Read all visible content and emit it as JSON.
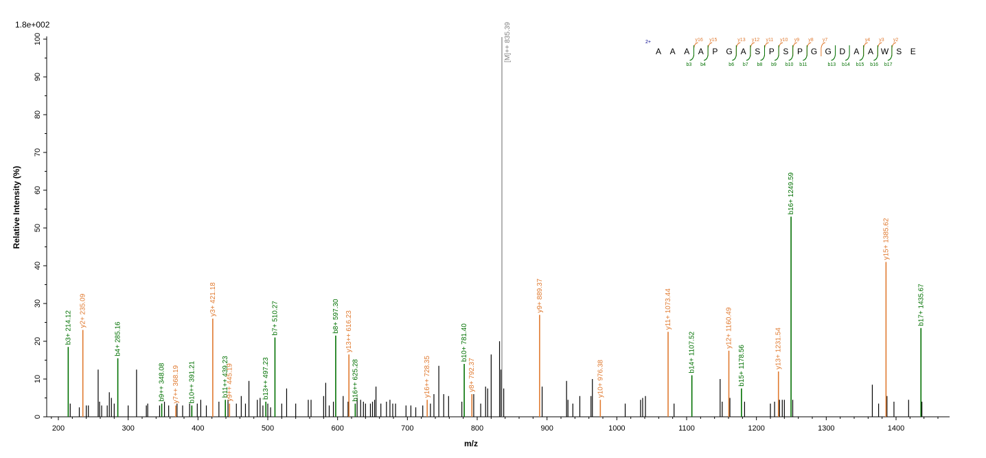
{
  "chart_data": {
    "type": "bar",
    "scale_label": "1.8e+002",
    "xlabel": "m/z",
    "ylabel": "Relative  Intensity (%)",
    "xlim": [
      190,
      1470
    ],
    "ylim": [
      0,
      100
    ],
    "x_ticks": [
      "200",
      "300",
      "400",
      "500",
      "600",
      "700",
      "800",
      "900",
      "1000",
      "1100",
      "1200",
      "1300",
      "1400"
    ],
    "y_ticks": [
      "0",
      "10",
      "20",
      "30",
      "40",
      "50",
      "60",
      "70",
      "80",
      "90",
      "100"
    ],
    "colors": {
      "b": "#007000",
      "y": "#e07a30",
      "precursor": "#808080",
      "unassigned": "#000000",
      "charge": "#00008b"
    },
    "precursor": {
      "mz": 835.39,
      "value": 100,
      "label": "[M]++ 835.39"
    },
    "annotated_peaks": [
      {
        "mz": 214.12,
        "value": 18.5,
        "ion": "b",
        "label": "b3+ 214.12"
      },
      {
        "mz": 235.09,
        "value": 23,
        "ion": "y",
        "label": "y2+ 235.09"
      },
      {
        "mz": 285.16,
        "value": 15.5,
        "ion": "b",
        "label": "b4+ 285.16"
      },
      {
        "mz": 348.08,
        "value": 3.5,
        "ion": "b",
        "label": "b9++ 348.08"
      },
      {
        "mz": 368.19,
        "value": 3,
        "ion": "y",
        "label": "y7++ 368.19"
      },
      {
        "mz": 391.21,
        "value": 3,
        "ion": "b",
        "label": "b10++ 391.21"
      },
      {
        "mz": 421.18,
        "value": 26,
        "ion": "y",
        "label": "y3+ 421.18"
      },
      {
        "mz": 439.23,
        "value": 4.5,
        "ion": "b",
        "label": "b11++ 439.23"
      },
      {
        "mz": 445.19,
        "value": 3.5,
        "ion": "y",
        "label": "y9++ 445.19"
      },
      {
        "mz": 497.23,
        "value": 4,
        "ion": "b",
        "label": "b13++ 497.23"
      },
      {
        "mz": 510.27,
        "value": 21,
        "ion": "b",
        "label": "b7+ 510.27"
      },
      {
        "mz": 597.3,
        "value": 21.5,
        "ion": "b",
        "label": "b8+ 597.30"
      },
      {
        "mz": 616.23,
        "value": 16.5,
        "ion": "y",
        "label": "y13++ 616.23"
      },
      {
        "mz": 625.28,
        "value": 3.5,
        "ion": "b",
        "label": "b16++ 625.28"
      },
      {
        "mz": 728.35,
        "value": 4.5,
        "ion": "y",
        "label": "y16++ 728.35"
      },
      {
        "mz": 781.4,
        "value": 14,
        "ion": "b",
        "label": "b10+ 781.40"
      },
      {
        "mz": 792.37,
        "value": 6,
        "ion": "y",
        "label": "y8+ 792.37"
      },
      {
        "mz": 889.37,
        "value": 27,
        "ion": "y",
        "label": "y9+ 889.37"
      },
      {
        "mz": 976.38,
        "value": 4.5,
        "ion": "y",
        "label": "y10+ 976.38"
      },
      {
        "mz": 1073.44,
        "value": 22.5,
        "ion": "y",
        "label": "y11+ 1073.44"
      },
      {
        "mz": 1107.52,
        "value": 11,
        "ion": "b",
        "label": "b14+ 1107.52"
      },
      {
        "mz": 1160.49,
        "value": 17.5,
        "ion": "y",
        "label": "y12+ 1160.49"
      },
      {
        "mz": 1178.56,
        "value": 7.5,
        "ion": "b",
        "label": "b15+ 1178.56"
      },
      {
        "mz": 1231.54,
        "value": 12,
        "ion": "y",
        "label": "y13+ 1231.54"
      },
      {
        "mz": 1249.59,
        "value": 53,
        "ion": "b",
        "label": "b16+ 1249.59"
      },
      {
        "mz": 1385.62,
        "value": 41,
        "ion": "y",
        "label": "y15+ 1385.62"
      },
      {
        "mz": 1435.67,
        "value": 23.5,
        "ion": "b",
        "label": "b17+ 1435.67"
      }
    ],
    "unassigned_peaks": [
      [
        217,
        3.5
      ],
      [
        230,
        2.5
      ],
      [
        240,
        3
      ],
      [
        243,
        3
      ],
      [
        257,
        12.5
      ],
      [
        259,
        4
      ],
      [
        262,
        3
      ],
      [
        270,
        3
      ],
      [
        273,
        6.5
      ],
      [
        276,
        5
      ],
      [
        280,
        3.5
      ],
      [
        300,
        3
      ],
      [
        312,
        12.5
      ],
      [
        326,
        3
      ],
      [
        328,
        3.5
      ],
      [
        345,
        3
      ],
      [
        352,
        4
      ],
      [
        358,
        3
      ],
      [
        370,
        3.5
      ],
      [
        378,
        3
      ],
      [
        388,
        3.5
      ],
      [
        391,
        3
      ],
      [
        399,
        3.5
      ],
      [
        404,
        4.5
      ],
      [
        412,
        3
      ],
      [
        430,
        4
      ],
      [
        443,
        4.5
      ],
      [
        455,
        3.5
      ],
      [
        462,
        5.5
      ],
      [
        468,
        3.5
      ],
      [
        473,
        9.5
      ],
      [
        485,
        4.5
      ],
      [
        489,
        5
      ],
      [
        493,
        3
      ],
      [
        500,
        3.5
      ],
      [
        504,
        2.5
      ],
      [
        520,
        3.5
      ],
      [
        527,
        7.5
      ],
      [
        540,
        3.5
      ],
      [
        558,
        4.5
      ],
      [
        562,
        4.5
      ],
      [
        580,
        5.5
      ],
      [
        583,
        9
      ],
      [
        588,
        3
      ],
      [
        594,
        4
      ],
      [
        608,
        5.5
      ],
      [
        615,
        4
      ],
      [
        628,
        5
      ],
      [
        633,
        4.5
      ],
      [
        637,
        4
      ],
      [
        640,
        3.5
      ],
      [
        647,
        3.5
      ],
      [
        650,
        4
      ],
      [
        653,
        4.5
      ],
      [
        655,
        8
      ],
      [
        662,
        3.5
      ],
      [
        670,
        4
      ],
      [
        675,
        4.5
      ],
      [
        679,
        3.5
      ],
      [
        683,
        3.5
      ],
      [
        698,
        3
      ],
      [
        705,
        3
      ],
      [
        712,
        2.5
      ],
      [
        722,
        3
      ],
      [
        733,
        3.5
      ],
      [
        738,
        6
      ],
      [
        745,
        13.5
      ],
      [
        752,
        6
      ],
      [
        759,
        5.5
      ],
      [
        778,
        4
      ],
      [
        795,
        6
      ],
      [
        805,
        3.5
      ],
      [
        812,
        8
      ],
      [
        815,
        7.5
      ],
      [
        820,
        16.5
      ],
      [
        832,
        20
      ],
      [
        834,
        12.5
      ],
      [
        838,
        7.5
      ],
      [
        893,
        8
      ],
      [
        928,
        9.5
      ],
      [
        930,
        4.5
      ],
      [
        937,
        3.5
      ],
      [
        947,
        5.5
      ],
      [
        963,
        5.5
      ],
      [
        965,
        10
      ],
      [
        1012,
        3.5
      ],
      [
        1034,
        4.5
      ],
      [
        1037,
        5
      ],
      [
        1041,
        5.5
      ],
      [
        1082,
        3.5
      ],
      [
        1148,
        10
      ],
      [
        1151,
        4
      ],
      [
        1162,
        5
      ],
      [
        1183,
        4
      ],
      [
        1220,
        3.5
      ],
      [
        1226,
        4
      ],
      [
        1233,
        4.5
      ],
      [
        1237,
        4.5
      ],
      [
        1240,
        4.5
      ],
      [
        1252,
        4.5
      ],
      [
        1366,
        8.5
      ],
      [
        1375,
        3.5
      ],
      [
        1387,
        5.5
      ],
      [
        1397,
        4
      ],
      [
        1418,
        4.5
      ],
      [
        1437,
        4
      ]
    ],
    "sequence": {
      "charge": "2+",
      "residues": [
        "A",
        "A",
        "A",
        "A",
        "P",
        "G",
        "A",
        "S",
        "P",
        "S",
        "P",
        "G",
        "G",
        "D",
        "A",
        "A",
        "W",
        "S",
        "E"
      ],
      "y_ions": [
        {
          "after": 3,
          "label": "y16"
        },
        {
          "after": 4,
          "label": "y15"
        },
        {
          "after": 6,
          "label": "y13"
        },
        {
          "after": 7,
          "label": "y12"
        },
        {
          "after": 8,
          "label": "y11"
        },
        {
          "after": 9,
          "label": "y10"
        },
        {
          "after": 10,
          "label": "y9"
        },
        {
          "after": 11,
          "label": "y8"
        },
        {
          "after": 12,
          "label": "y7"
        },
        {
          "after": 15,
          "label": "y4"
        },
        {
          "after": 16,
          "label": "y3"
        },
        {
          "after": 17,
          "label": "y2"
        }
      ],
      "b_ions": [
        {
          "after": 3,
          "label": "b3"
        },
        {
          "after": 4,
          "label": "b4"
        },
        {
          "after": 6,
          "label": "b6"
        },
        {
          "after": 7,
          "label": "b7"
        },
        {
          "after": 8,
          "label": "b8"
        },
        {
          "after": 9,
          "label": "b9"
        },
        {
          "after": 10,
          "label": "b10"
        },
        {
          "after": 11,
          "label": "b11"
        },
        {
          "after": 13,
          "label": "b13"
        },
        {
          "after": 14,
          "label": "b14"
        },
        {
          "after": 15,
          "label": "b15"
        },
        {
          "after": 16,
          "label": "b16"
        },
        {
          "after": 17,
          "label": "b17"
        }
      ]
    }
  }
}
